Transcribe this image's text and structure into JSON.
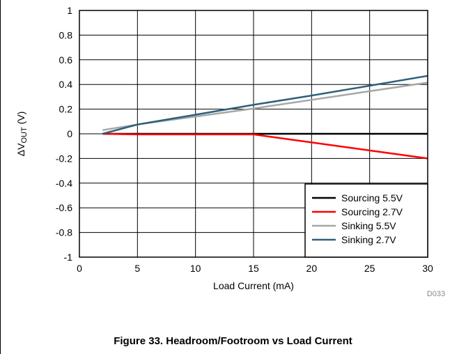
{
  "figure_caption": "Figure 33. Headroom/Footroom vs Load Current",
  "figure_code": "D033",
  "chart_data": {
    "type": "line",
    "xlabel": "Load Current (mA)",
    "ylabel_main": "ΔV",
    "ylabel_sub": "OUT",
    "ylabel_unit": " (V)",
    "xlim": [
      0,
      30
    ],
    "ylim": [
      -1,
      1
    ],
    "xticks": [
      0,
      5,
      10,
      15,
      20,
      25,
      30
    ],
    "yticks": [
      -1,
      -0.8,
      -0.6,
      -0.4,
      -0.2,
      0,
      0.2,
      0.4,
      0.6,
      0.8,
      1
    ],
    "grid": true,
    "legend_position": "bottom-right",
    "series": [
      {
        "name": "Sourcing 5.5V",
        "color": "#000000",
        "x": [
          2,
          5,
          10,
          15,
          20,
          25,
          30
        ],
        "y": [
          0,
          0,
          0,
          0,
          0,
          0,
          0
        ]
      },
      {
        "name": "Sourcing 2.7V",
        "color": "#ff0000",
        "x": [
          2,
          5,
          8,
          15,
          20,
          25,
          30
        ],
        "y": [
          0,
          -0.005,
          -0.005,
          -0.005,
          -0.07,
          -0.135,
          -0.2
        ]
      },
      {
        "name": "Sinking 5.5V",
        "color": "#a6a6a6",
        "x": [
          2,
          5,
          10,
          15,
          20,
          25,
          30
        ],
        "y": [
          0.03,
          0.075,
          0.14,
          0.205,
          0.275,
          0.345,
          0.415
        ]
      },
      {
        "name": "Sinking 2.7V",
        "color": "#2e5f7a",
        "x": [
          2,
          5,
          10,
          15,
          20,
          25,
          30
        ],
        "y": [
          0,
          0.075,
          0.155,
          0.235,
          0.31,
          0.39,
          0.47
        ]
      }
    ]
  }
}
